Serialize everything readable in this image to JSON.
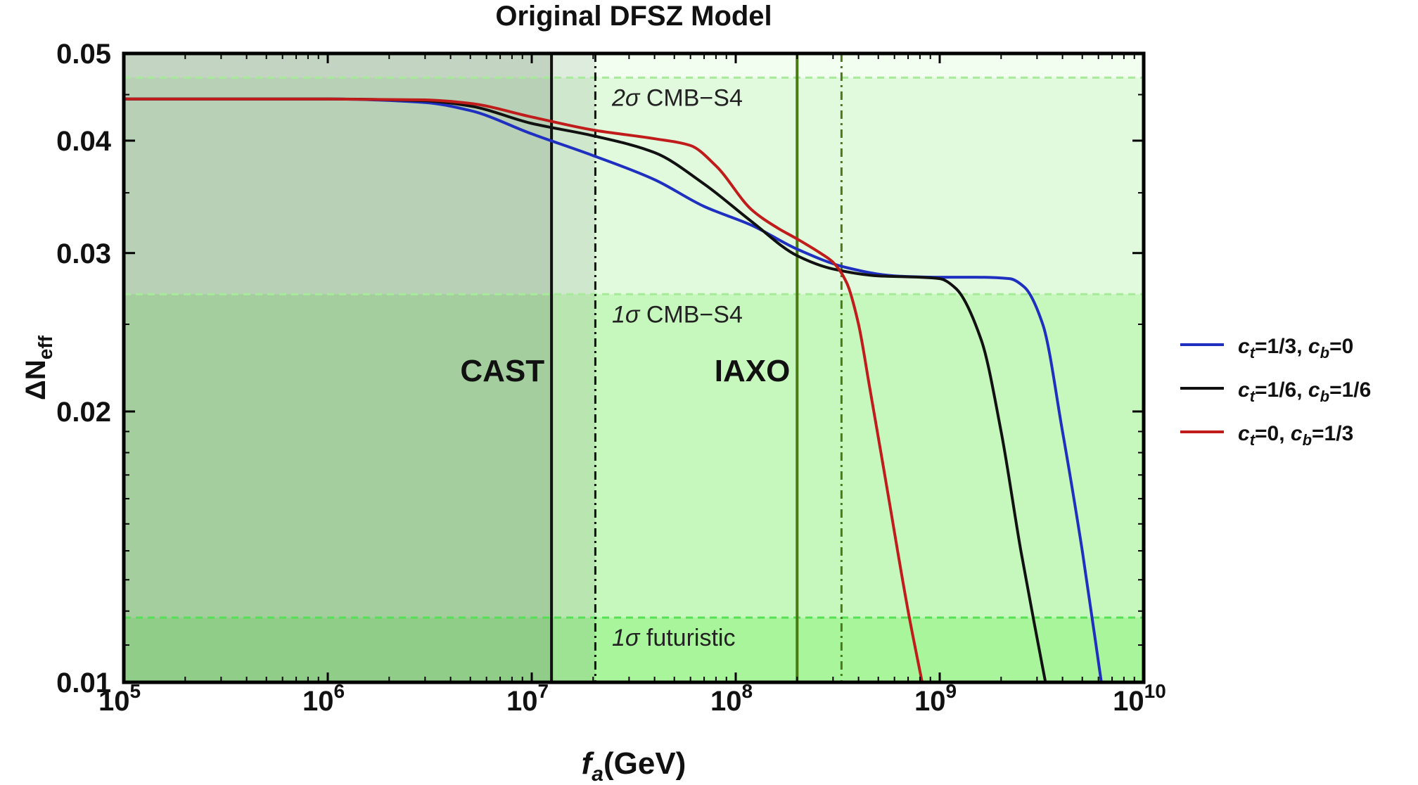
{
  "chart_data": {
    "type": "line",
    "title": "Original DFSZ Model",
    "xlabel": {
      "var": "f",
      "sub": "a",
      "unit": "(GeV)"
    },
    "ylabel": {
      "main": "ΔN",
      "sub": "eff"
    },
    "x_scale": "log",
    "y_scale": "log",
    "xlim": [
      100000,
      10000000000
    ],
    "ylim": [
      0.01,
      0.05
    ],
    "x_ticks": [
      {
        "value": 100000,
        "base": "10",
        "exp": "5"
      },
      {
        "value": 1000000,
        "base": "10",
        "exp": "6"
      },
      {
        "value": 10000000,
        "base": "10",
        "exp": "7"
      },
      {
        "value": 100000000,
        "base": "10",
        "exp": "8"
      },
      {
        "value": 1000000000,
        "base": "10",
        "exp": "9"
      },
      {
        "value": 10000000000,
        "base": "10",
        "exp": "10"
      }
    ],
    "y_ticks": [
      {
        "value": 0.01,
        "label": "0.01"
      },
      {
        "value": 0.02,
        "label": "0.02"
      },
      {
        "value": 0.03,
        "label": "0.03"
      },
      {
        "value": 0.04,
        "label": "0.04"
      },
      {
        "value": 0.05,
        "label": "0.05"
      }
    ],
    "horizontal_lines": [
      {
        "y": 0.047,
        "label_greek": "2σ",
        "label_text": " CMB−S4",
        "color": "#a6ea9a"
      },
      {
        "y": 0.027,
        "label_greek": "1σ",
        "label_text": " CMB−S4",
        "color": "#a6ea9a"
      },
      {
        "y": 0.0118,
        "label_greek": "1σ",
        "label_text": " futuristic",
        "color": "#55e055"
      }
    ],
    "bands": [
      {
        "from": 0.047,
        "to": 0.05,
        "color": "#f2fff0"
      },
      {
        "from": 0.027,
        "to": 0.047,
        "color": "#e1fadd"
      },
      {
        "from": 0.0118,
        "to": 0.027,
        "color": "#c6f7bd"
      },
      {
        "from": 0.01,
        "to": 0.0118,
        "color": "#a8f59c"
      }
    ],
    "excluded_regions": [
      {
        "from": 100000,
        "to": 12500000,
        "color": "#5a6f5a",
        "opacity": 0.3
      },
      {
        "from": 12500000,
        "to": 20500000,
        "color": "#5a6f5a",
        "opacity": 0.13
      }
    ],
    "vertical_lines": [
      {
        "x": 12500000,
        "label": "CAST",
        "style": "solid",
        "color": "#111111"
      },
      {
        "x": 20500000,
        "label": "",
        "style": "dashdot",
        "color": "#111111"
      },
      {
        "x": 200000000,
        "label": "IAXO",
        "style": "solid",
        "color": "#4a7a14"
      },
      {
        "x": 330000000,
        "label": "",
        "style": "dashdot",
        "color": "#4a7a14"
      }
    ],
    "legend_position": "right",
    "series": [
      {
        "legend": [
          {
            "v": "c",
            "s": "t",
            "val": "=1/3, "
          },
          {
            "v": "c",
            "s": "b",
            "val": "=0"
          }
        ],
        "color": "#1f2fc0",
        "x": [
          100000,
          1000000,
          3000000,
          5000000,
          10000000,
          20000000,
          40000000,
          70000000,
          120000000,
          200000000,
          350000000,
          600000000,
          1000000000,
          1500000000,
          2200000000,
          2600000000,
          3200000000,
          4000000000,
          5000000000,
          6200000000
        ],
        "y": [
          0.0445,
          0.0445,
          0.0441,
          0.0432,
          0.0407,
          0.0385,
          0.0362,
          0.0338,
          0.0322,
          0.0303,
          0.0289,
          0.0283,
          0.0282,
          0.0282,
          0.0281,
          0.0275,
          0.025,
          0.019,
          0.014,
          0.01
        ]
      },
      {
        "legend": [
          {
            "v": "c",
            "s": "t",
            "val": "=1/6, "
          },
          {
            "v": "c",
            "s": "b",
            "val": "=1/6"
          }
        ],
        "color": "#111111",
        "x": [
          100000,
          1000000,
          3000000,
          5000000,
          10000000,
          20000000,
          40000000,
          70000000,
          120000000,
          200000000,
          300000000,
          500000000,
          800000000,
          1000000000,
          1200000000,
          1600000000,
          2000000000,
          2500000000,
          3000000000,
          3300000000
        ],
        "y": [
          0.0445,
          0.0445,
          0.0443,
          0.0437,
          0.0418,
          0.0405,
          0.0388,
          0.0358,
          0.0325,
          0.0298,
          0.0288,
          0.0283,
          0.0282,
          0.0281,
          0.0274,
          0.024,
          0.019,
          0.014,
          0.0112,
          0.01
        ]
      },
      {
        "legend": [
          {
            "v": "c",
            "s": "t",
            "val": "=0, "
          },
          {
            "v": "c",
            "s": "b",
            "val": "=1/3"
          }
        ],
        "color": "#c01c1c",
        "x": [
          100000,
          1000000,
          3000000,
          5000000,
          10000000,
          20000000,
          40000000,
          60000000,
          80000000,
          120000000,
          160000000,
          200000000,
          260000000,
          300000000,
          350000000,
          400000000,
          450000000,
          550000000,
          700000000,
          820000000
        ],
        "y": [
          0.0445,
          0.0445,
          0.0444,
          0.044,
          0.0425,
          0.0411,
          0.0402,
          0.0395,
          0.0375,
          0.0335,
          0.032,
          0.0311,
          0.03,
          0.0293,
          0.0278,
          0.025,
          0.0215,
          0.0165,
          0.012,
          0.01
        ]
      }
    ]
  }
}
